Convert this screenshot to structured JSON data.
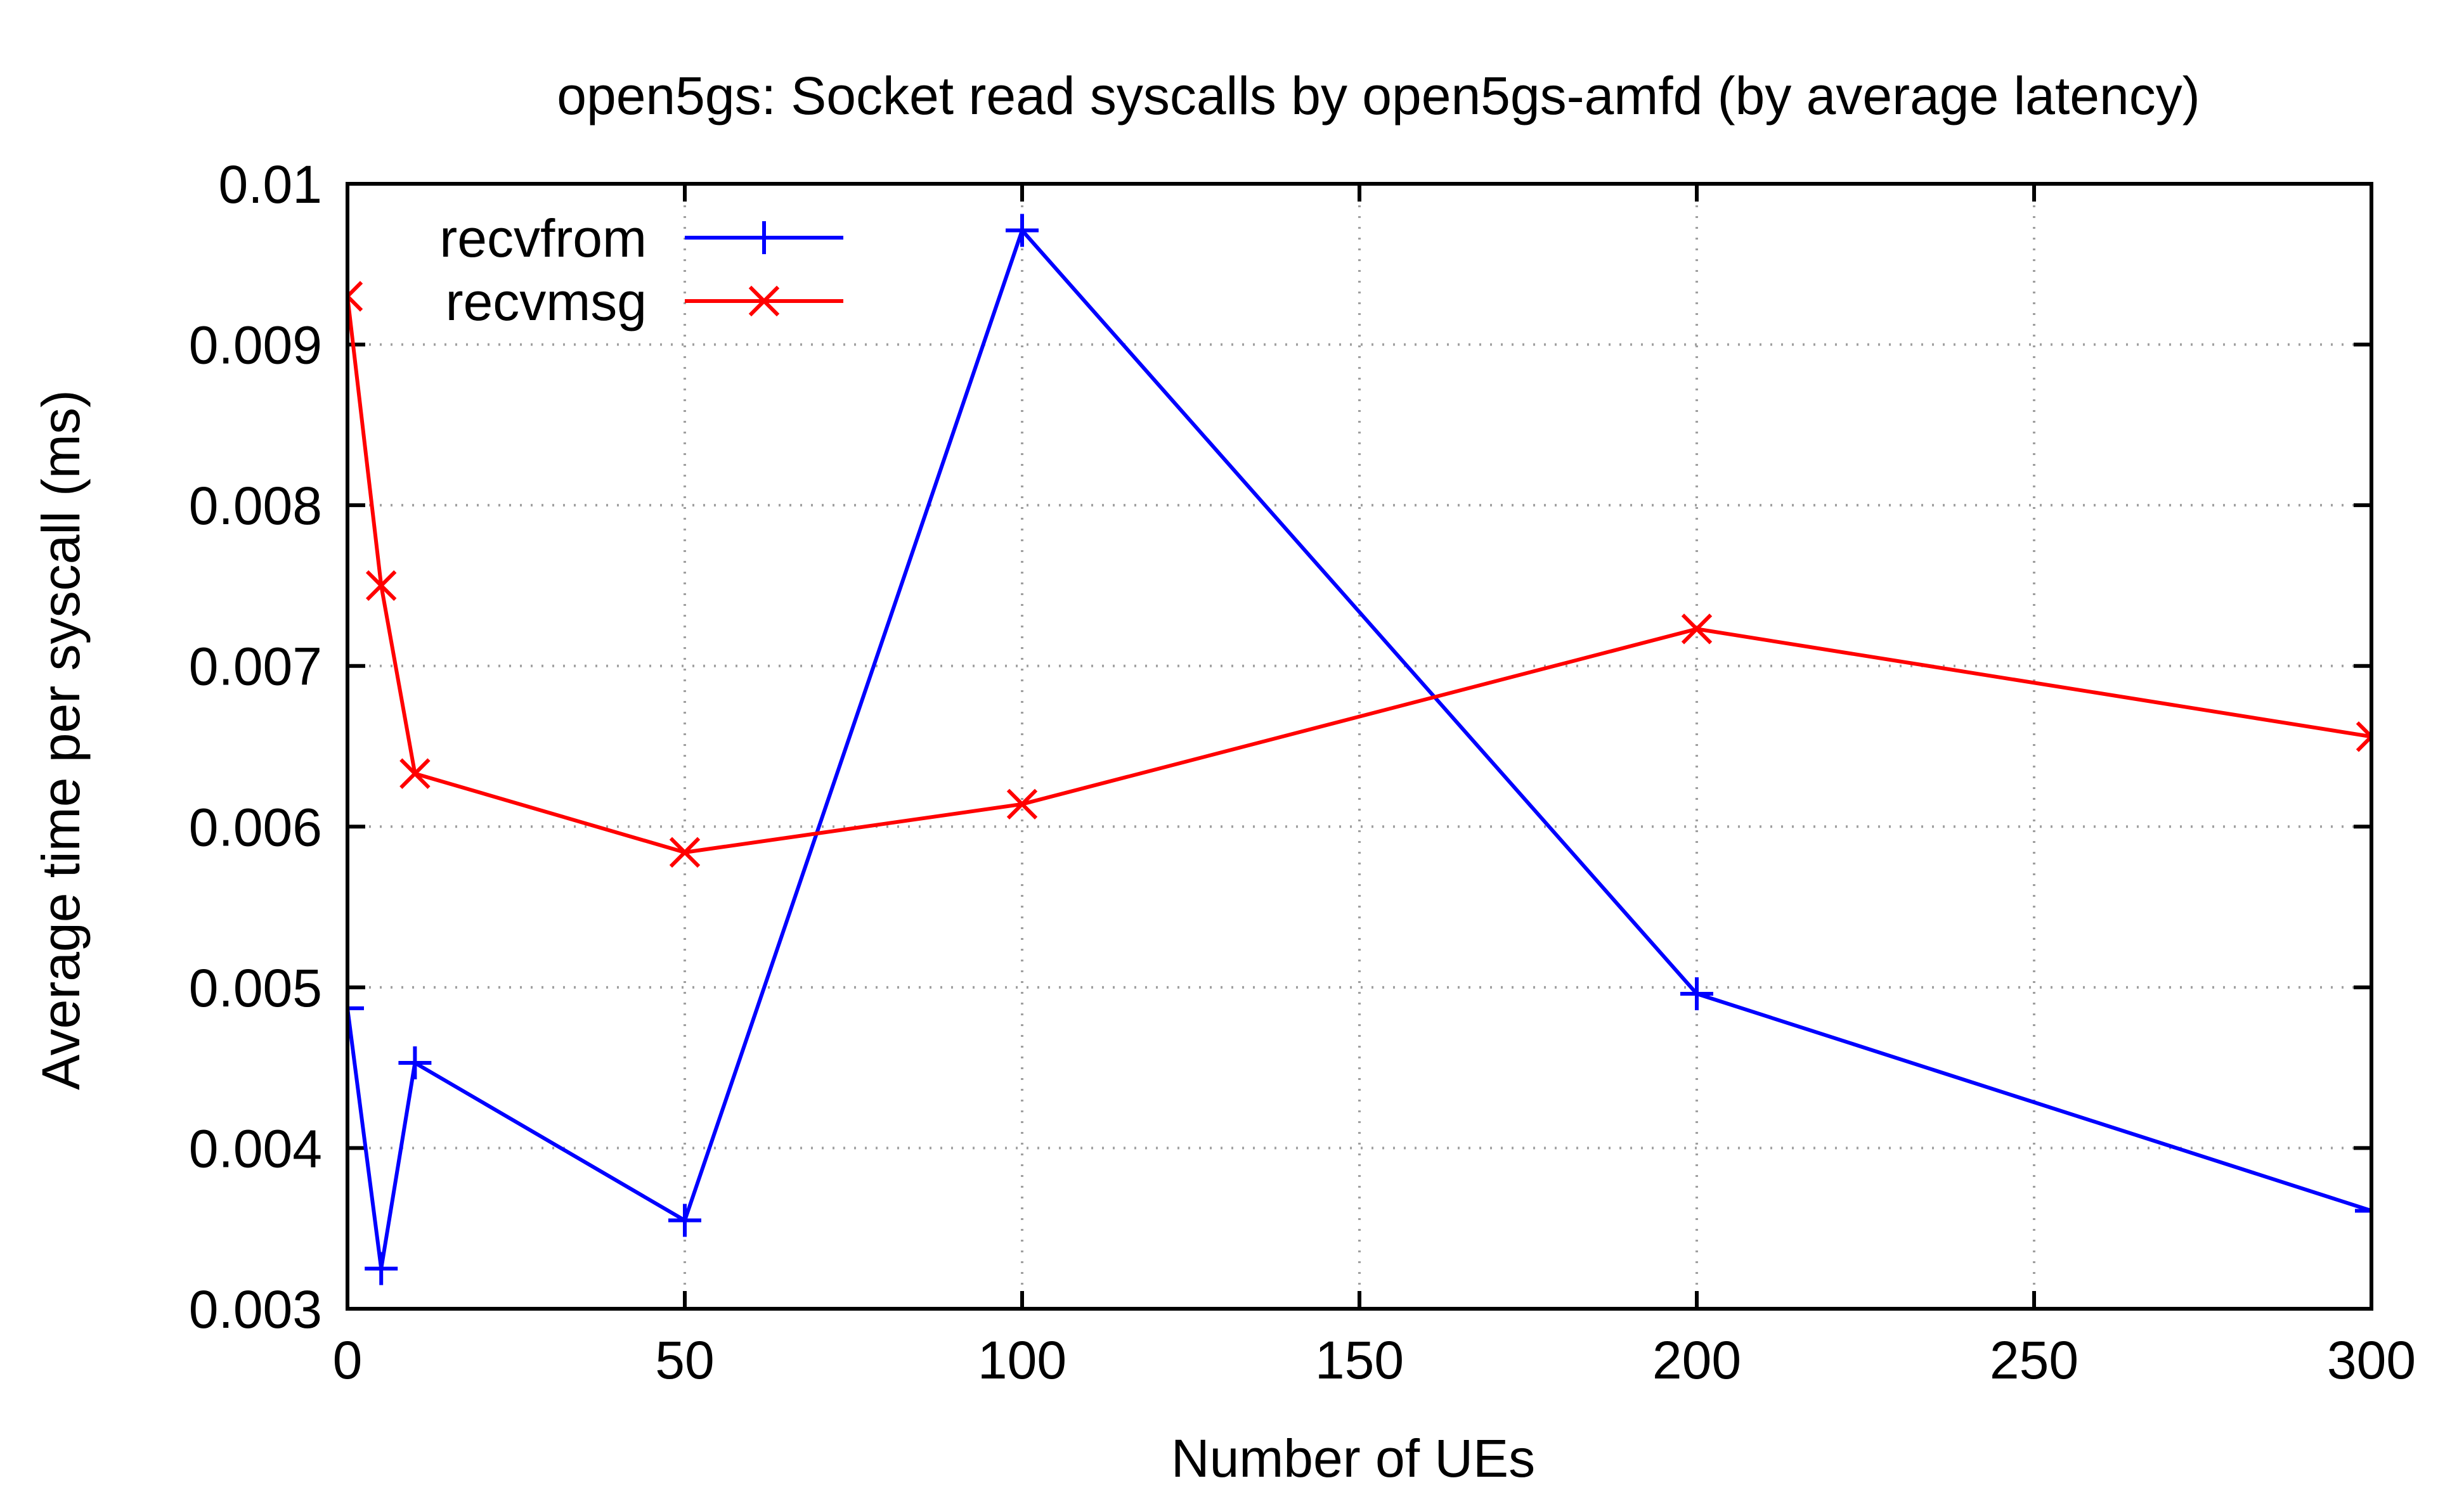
{
  "chart_data": {
    "type": "line",
    "title": "open5gs: Socket read syscalls by open5gs-amfd (by average latency)",
    "xlabel": "Number of UEs",
    "ylabel": "Average time per syscall (ms)",
    "xlim": [
      0,
      300
    ],
    "ylim": [
      0.003,
      0.01
    ],
    "xticks": [
      0,
      50,
      100,
      150,
      200,
      250,
      300
    ],
    "xtick_labels": [
      "0",
      "50",
      "100",
      "150",
      "200",
      "250",
      "300"
    ],
    "yticks": [
      0.003,
      0.004,
      0.005,
      0.006,
      0.007,
      0.008,
      0.009,
      0.01
    ],
    "ytick_labels": [
      "0.003",
      "0.004",
      "0.005",
      "0.006",
      "0.007",
      "0.008",
      "0.009",
      "0.01"
    ],
    "grid": true,
    "legend_position": "top-left",
    "series": [
      {
        "name": "recvfrom",
        "color": "#0000ff",
        "marker": "plus",
        "x": [
          0,
          5,
          10,
          50,
          100,
          200,
          300
        ],
        "y": [
          0.00487,
          0.00325,
          0.00453,
          0.00355,
          0.00971,
          0.00496,
          0.00361
        ]
      },
      {
        "name": "recvmsg",
        "color": "#ff0000",
        "marker": "cross",
        "x": [
          0,
          5,
          10,
          50,
          100,
          200,
          300
        ],
        "y": [
          0.0093,
          0.0075,
          0.00633,
          0.00584,
          0.00614,
          0.00723,
          0.00656
        ]
      }
    ]
  }
}
